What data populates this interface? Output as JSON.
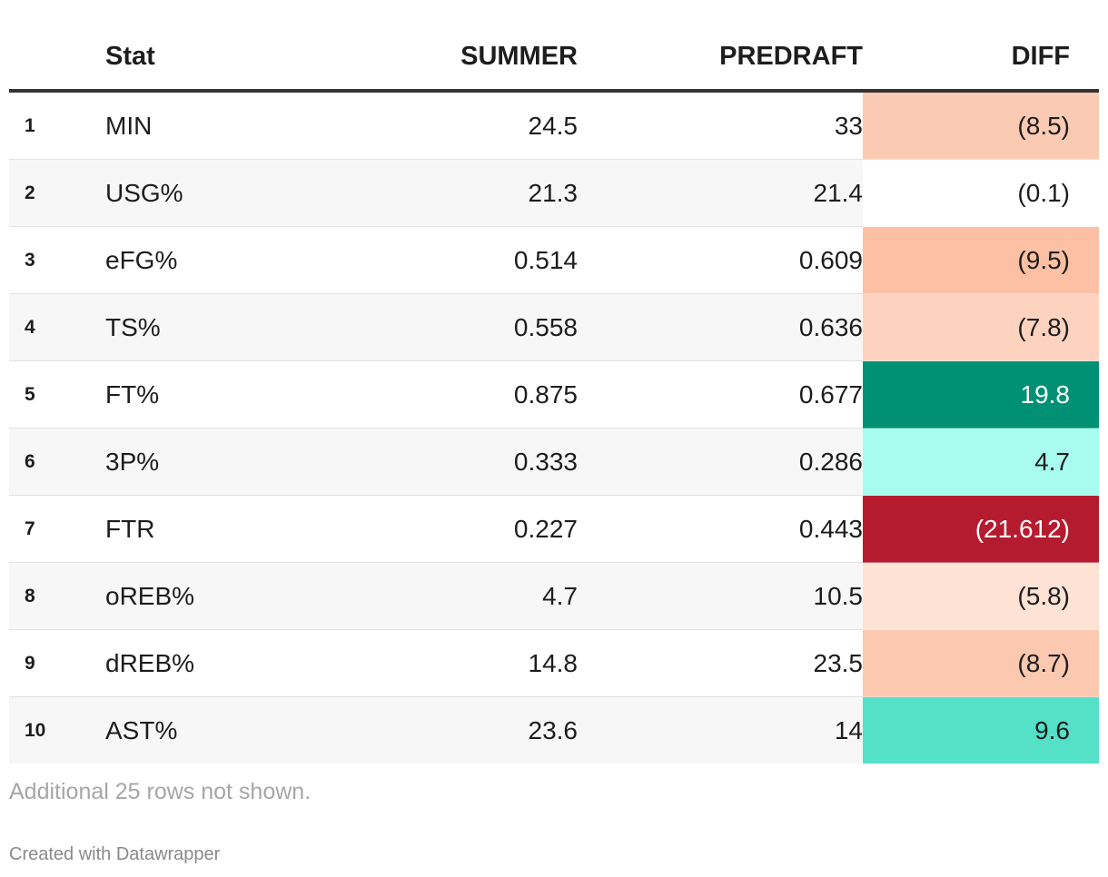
{
  "chart_data": {
    "type": "table",
    "columns": [
      "",
      "Stat",
      "SUMMER",
      "PREDRAFT",
      "DIFF"
    ],
    "rows": [
      {
        "rank": "1",
        "stat": "MIN",
        "summer": "24.5",
        "predraft": "33",
        "diff": "(8.5)",
        "diff_value": -8.5,
        "diff_bg": "#fbcab3",
        "diff_fg": "#1d1d1d"
      },
      {
        "rank": "2",
        "stat": "USG%",
        "summer": "21.3",
        "predraft": "21.4",
        "diff": "(0.1)",
        "diff_value": -0.1,
        "diff_bg": "#ffffff",
        "diff_fg": "#1d1d1d"
      },
      {
        "rank": "3",
        "stat": "eFG%",
        "summer": "0.514",
        "predraft": "0.609",
        "diff": "(9.5)",
        "diff_value": -9.5,
        "diff_bg": "#fcc0a4",
        "diff_fg": "#1d1d1d"
      },
      {
        "rank": "4",
        "stat": "TS%",
        "summer": "0.558",
        "predraft": "0.636",
        "diff": "(7.8)",
        "diff_value": -7.8,
        "diff_bg": "#fdd3bf",
        "diff_fg": "#1d1d1d"
      },
      {
        "rank": "5",
        "stat": "FT%",
        "summer": "0.875",
        "predraft": "0.677",
        "diff": "19.8",
        "diff_value": 19.8,
        "diff_bg": "#009175",
        "diff_fg": "#ffffff"
      },
      {
        "rank": "6",
        "stat": "3P%",
        "summer": "0.333",
        "predraft": "0.286",
        "diff": "4.7",
        "diff_value": 4.7,
        "diff_bg": "#a7fcef",
        "diff_fg": "#1d1d1d"
      },
      {
        "rank": "7",
        "stat": "FTR",
        "summer": "0.227",
        "predraft": "0.443",
        "diff": "(21.612)",
        "diff_value": -21.612,
        "diff_bg": "#b51b2e",
        "diff_fg": "#ffffff"
      },
      {
        "rank": "8",
        "stat": "oREB%",
        "summer": "4.7",
        "predraft": "10.5",
        "diff": "(5.8)",
        "diff_value": -5.8,
        "diff_bg": "#fee2d4",
        "diff_fg": "#1d1d1d"
      },
      {
        "rank": "9",
        "stat": "dREB%",
        "summer": "14.8",
        "predraft": "23.5",
        "diff": "(8.7)",
        "diff_value": -8.7,
        "diff_bg": "#fbc8b0",
        "diff_fg": "#1d1d1d"
      },
      {
        "rank": "10",
        "stat": "AST%",
        "summer": "23.6",
        "predraft": "14",
        "diff": "9.6",
        "diff_value": 9.6,
        "diff_bg": "#55e0c8",
        "diff_fg": "#1d1d1d"
      }
    ],
    "notes": "Additional 25 rows not shown.",
    "credit": "Created with Datawrapper"
  }
}
